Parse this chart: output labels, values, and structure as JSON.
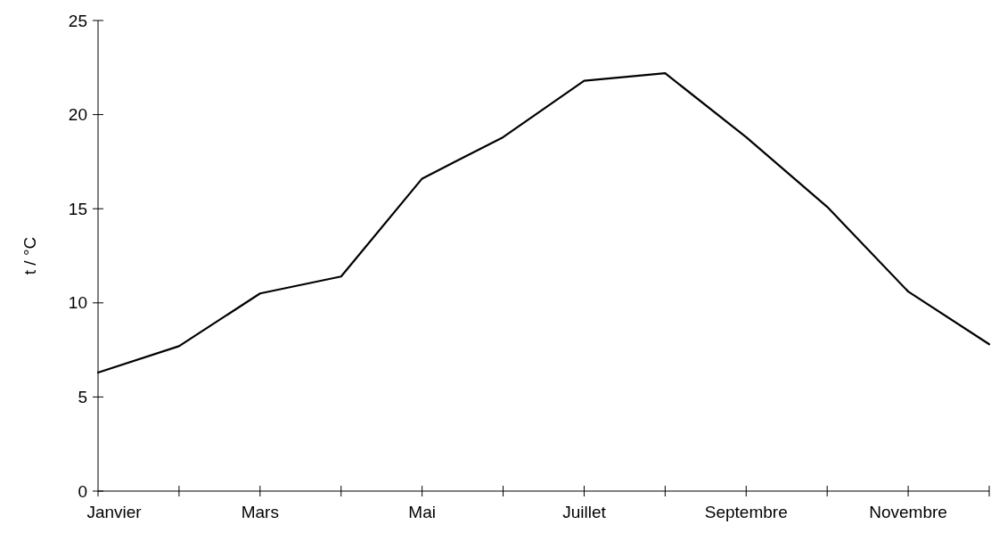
{
  "chart_data": {
    "type": "line",
    "ylabel": "t / °C",
    "categories": [
      "Janvier",
      null,
      "Mars",
      null,
      "Mai",
      null,
      "Juillet",
      null,
      "Septembre",
      null,
      "Novembre",
      null
    ],
    "series": [
      {
        "color": "#000000",
        "values": [
          6.3,
          7.7,
          10.5,
          11.4,
          16.6,
          18.8,
          21.8,
          22.2,
          18.8,
          15.1,
          10.6,
          7.8
        ]
      }
    ],
    "ylim": [
      0,
      25
    ],
    "yticks": [
      0,
      5,
      10,
      15,
      20,
      25
    ],
    "grid": false,
    "marker": "none",
    "line_style": "solid"
  }
}
